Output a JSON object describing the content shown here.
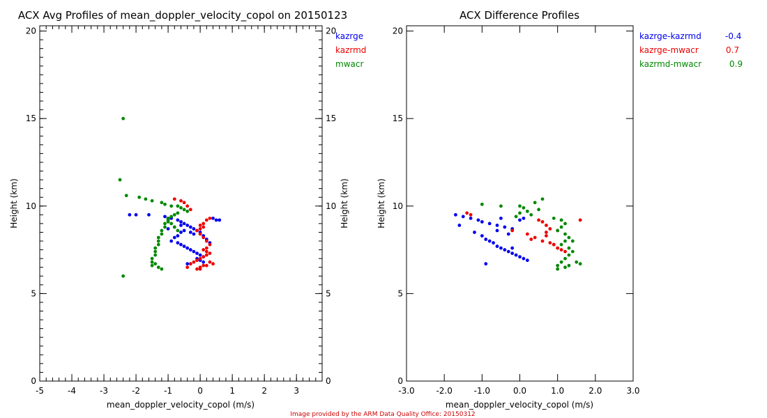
{
  "credit": {
    "text": "Image provided by the ARM Data Quality Office: 20150312",
    "color": "#cc0000"
  },
  "colors": {
    "kazrge": "#0000ee",
    "kazrmd": "#ee0000",
    "mwacr": "#008800"
  },
  "chart_data": [
    {
      "type": "scatter",
      "title": "ACX Avg Profiles of mean_doppler_velocity_copol on 20150123",
      "xlabel": "mean_doppler_velocity_copol (m/s)",
      "ylabel": "Height (km)",
      "ylabel_right": "Height (km)",
      "xlim": [
        -5,
        3.8
      ],
      "ylim": [
        0,
        20.3
      ],
      "xticks": [
        -5,
        -4,
        -3,
        -2,
        -1,
        0,
        1,
        2,
        3
      ],
      "xtick_labels": [
        "-5",
        "-4",
        "-3",
        "-2",
        "-1",
        "0",
        "1",
        "2",
        "3"
      ],
      "yticks": [
        0,
        5,
        10,
        15,
        20
      ],
      "ytick_labels": [
        "0",
        "5",
        "10",
        "15",
        "20"
      ],
      "series": [
        {
          "name": "kazrge",
          "color_key": "kazrge",
          "x": [
            -2.2,
            -2.0,
            -1.6,
            -1.1,
            -1.0,
            -0.9,
            -0.7,
            -0.6,
            -0.5,
            -0.4,
            -0.3,
            -0.2,
            -0.1,
            0.0,
            0.1,
            0.2,
            0.3,
            0.4,
            0.6,
            0.5,
            -0.5,
            -0.6,
            -0.7,
            -0.8,
            -0.9,
            -0.7,
            -0.6,
            -0.5,
            -0.4,
            -0.3,
            -0.2,
            -0.1,
            0.0,
            0.1,
            -0.1,
            0.0,
            0.1,
            -0.3,
            -0.4,
            -0.6,
            -0.8,
            -1.0,
            -0.3,
            -0.2
          ],
          "y": [
            9.5,
            9.5,
            9.5,
            9.4,
            9.3,
            9.3,
            9.2,
            9.1,
            9.0,
            8.9,
            8.8,
            8.7,
            8.6,
            8.5,
            8.3,
            8.1,
            7.9,
            9.3,
            9.2,
            9.2,
            8.6,
            8.5,
            8.3,
            8.2,
            8.0,
            7.9,
            7.8,
            7.7,
            7.6,
            7.5,
            7.4,
            7.3,
            7.2,
            7.1,
            7.0,
            6.9,
            6.8,
            6.7,
            6.7,
            8.9,
            8.8,
            8.7,
            8.5,
            8.4
          ]
        },
        {
          "name": "kazrmd",
          "color_key": "kazrmd",
          "x": [
            -0.8,
            -0.6,
            -0.5,
            -0.4,
            -0.3,
            0.3,
            0.2,
            0.1,
            0.0,
            0.1,
            0.0,
            -0.1,
            0.0,
            0.1,
            0.2,
            0.3,
            0.2,
            0.1,
            0.2,
            0.3,
            0.2,
            0.1,
            0.0,
            -0.1,
            -0.2,
            -0.3,
            0.3,
            0.4,
            0.2,
            0.1,
            0.0,
            0.0,
            -0.1,
            -0.4
          ],
          "y": [
            10.4,
            10.3,
            10.2,
            10.0,
            9.8,
            9.3,
            9.2,
            9.0,
            8.9,
            8.8,
            8.7,
            8.6,
            8.4,
            8.2,
            8.0,
            7.8,
            7.6,
            7.5,
            7.4,
            7.3,
            7.2,
            7.1,
            7.0,
            6.9,
            6.8,
            6.7,
            6.8,
            6.7,
            6.6,
            6.6,
            6.5,
            6.4,
            6.4,
            6.5
          ]
        },
        {
          "name": "mwacr",
          "color_key": "mwacr",
          "x": [
            -2.4,
            -2.5,
            -2.3,
            -1.9,
            -1.7,
            -1.5,
            -1.2,
            -1.1,
            -0.9,
            -0.7,
            -0.6,
            -0.5,
            -0.4,
            -0.7,
            -0.8,
            -0.9,
            -1.0,
            -1.0,
            -1.1,
            -1.1,
            -1.2,
            -1.2,
            -1.3,
            -1.3,
            -1.3,
            -1.4,
            -1.4,
            -1.4,
            -1.5,
            -1.5,
            -1.4,
            -1.5,
            -1.3,
            -1.2,
            -1.0,
            -0.9,
            -0.8,
            -0.7,
            -2.4
          ],
          "y": [
            15.0,
            11.5,
            10.6,
            10.5,
            10.4,
            10.3,
            10.2,
            10.1,
            10.0,
            10.0,
            9.9,
            9.8,
            9.7,
            9.6,
            9.5,
            9.4,
            9.3,
            9.1,
            9.0,
            8.8,
            8.6,
            8.4,
            8.2,
            8.0,
            7.8,
            7.6,
            7.4,
            7.2,
            7.0,
            6.8,
            6.7,
            6.6,
            6.5,
            6.4,
            9.2,
            9.0,
            8.8,
            8.6,
            6.0
          ]
        }
      ],
      "legend": [
        {
          "label": "kazrge",
          "color_key": "kazrge"
        },
        {
          "label": "kazrmd",
          "color_key": "kazrmd"
        },
        {
          "label": "mwacr",
          "color_key": "mwacr"
        }
      ],
      "legend_position": "top-right outside"
    },
    {
      "type": "scatter",
      "title": "ACX Difference Profiles",
      "xlabel": "mean_doppler_velocity_copol (m/s)",
      "ylabel": "Height (km)",
      "xlim": [
        -3,
        3
      ],
      "ylim": [
        0,
        20.3
      ],
      "xticks": [
        -3,
        -2,
        -1,
        0,
        1,
        2,
        3
      ],
      "xtick_labels": [
        "-3.0",
        "-2.0",
        "-1.0",
        "0.0",
        "1.0",
        "2.0",
        "3.0"
      ],
      "yticks": [
        0,
        5,
        10,
        15,
        20
      ],
      "ytick_labels": [
        "0",
        "5",
        "10",
        "15",
        "20"
      ],
      "series": [
        {
          "name": "kazrge-kazrmd",
          "color_key": "kazrge",
          "x": [
            -1.7,
            -1.5,
            -1.3,
            -1.1,
            -1.0,
            -0.8,
            -0.6,
            -0.4,
            -0.2,
            -1.6,
            -1.2,
            -1.0,
            -0.9,
            -0.8,
            -0.7,
            -0.6,
            -0.5,
            -0.4,
            -0.3,
            -0.2,
            -0.1,
            0.0,
            0.1,
            0.2,
            -0.5,
            -0.6,
            -0.3,
            0.0,
            0.1,
            -0.9,
            -0.2
          ],
          "y": [
            9.5,
            9.4,
            9.3,
            9.2,
            9.1,
            9.0,
            8.9,
            8.8,
            8.7,
            8.9,
            8.5,
            8.3,
            8.1,
            8.0,
            7.9,
            7.7,
            7.6,
            7.5,
            7.4,
            7.3,
            7.2,
            7.1,
            7.0,
            6.9,
            9.3,
            8.6,
            8.4,
            9.2,
            9.3,
            6.7,
            7.6
          ]
        },
        {
          "name": "kazrge-mwacr",
          "color_key": "kazrmd",
          "x": [
            -1.4,
            -1.3,
            -0.2,
            0.2,
            0.4,
            0.6,
            0.7,
            0.8,
            0.7,
            0.6,
            0.8,
            0.9,
            1.0,
            1.1,
            1.2,
            0.5,
            0.3,
            0.7,
            1.6,
            0.9,
            1.0
          ],
          "y": [
            9.6,
            9.5,
            8.6,
            8.4,
            8.2,
            8.0,
            8.5,
            8.7,
            8.9,
            9.1,
            7.9,
            7.8,
            7.6,
            7.5,
            7.4,
            9.2,
            8.1,
            8.3,
            9.2,
            7.8,
            8.6
          ]
        },
        {
          "name": "kazrmd-mwacr",
          "color_key": "mwacr",
          "x": [
            -1.0,
            -0.5,
            0.0,
            0.1,
            0.4,
            0.6,
            0.5,
            0.2,
            0.0,
            0.3,
            -0.1,
            0.9,
            1.1,
            1.2,
            1.1,
            1.0,
            1.2,
            1.3,
            1.2,
            1.1,
            1.3,
            1.4,
            1.3,
            1.2,
            1.1,
            1.0,
            1.5,
            1.6,
            1.3,
            1.2,
            1.0,
            1.4
          ],
          "y": [
            10.1,
            10.0,
            10.0,
            9.9,
            10.2,
            10.4,
            9.8,
            9.7,
            9.6,
            9.5,
            9.4,
            9.3,
            9.2,
            9.0,
            8.8,
            8.6,
            8.4,
            8.2,
            8.0,
            7.8,
            7.6,
            7.4,
            7.2,
            7.0,
            6.8,
            6.6,
            6.8,
            6.7,
            6.6,
            6.5,
            6.4,
            8.0
          ]
        }
      ],
      "legend": [
        {
          "label": "kazrge-kazrmd",
          "value": "-0.4",
          "color_key": "kazrge"
        },
        {
          "label": "kazrge-mwacr",
          "value": "0.7",
          "color_key": "kazrmd"
        },
        {
          "label": "kazrmd-mwacr",
          "value": "0.9",
          "color_key": "mwacr"
        }
      ],
      "legend_position": "top-right outside"
    }
  ]
}
